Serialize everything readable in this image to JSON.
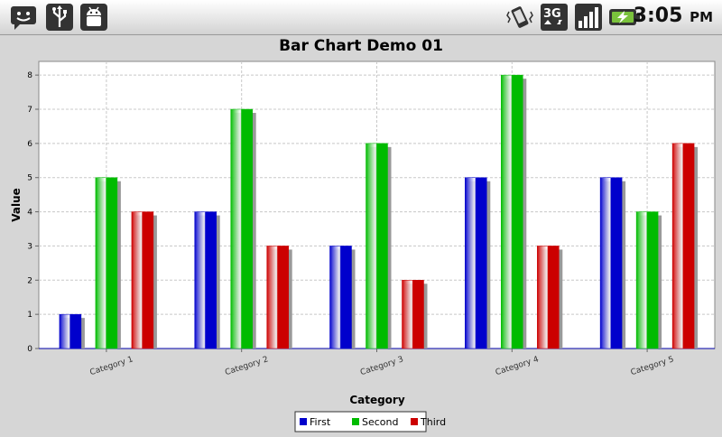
{
  "status_bar": {
    "time": "3:05",
    "ampm": "PM",
    "left_icons": [
      "chat-notification-icon",
      "usb-icon",
      "android-debug-icon"
    ],
    "right_icons": [
      "vibrate-icon",
      "3g-data-icon",
      "signal-strength-icon",
      "battery-charging-icon"
    ],
    "battery_color": "#7ac23c"
  },
  "chart_data": {
    "type": "bar",
    "title": "Bar Chart Demo 01",
    "xlabel": "Category",
    "ylabel": "Value",
    "categories": [
      "Category 1",
      "Category 2",
      "Category 3",
      "Category 4",
      "Category 5"
    ],
    "series": [
      {
        "name": "First",
        "values": [
          1,
          4,
          3,
          5,
          5
        ],
        "color": "#0000cc"
      },
      {
        "name": "Second",
        "values": [
          5,
          7,
          6,
          8,
          4
        ],
        "color": "#00bb00"
      },
      {
        "name": "Third",
        "values": [
          4,
          3,
          2,
          3,
          6
        ],
        "color": "#cc0000"
      }
    ],
    "ylim": [
      0,
      8.4
    ],
    "yticks": [
      "0",
      "1",
      "2",
      "3",
      "4",
      "5",
      "6",
      "7",
      "8"
    ],
    "grid": true,
    "legend": "bottom-center"
  }
}
